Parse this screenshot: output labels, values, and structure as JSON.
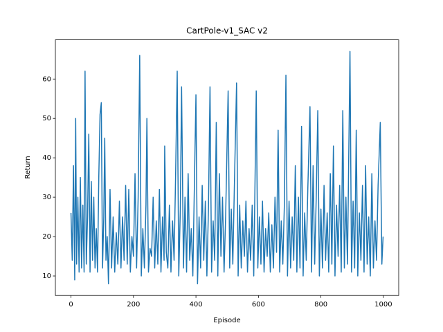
{
  "chart_data": {
    "type": "line",
    "title": "CartPole-v1_SAC v2",
    "x_label": "Episode",
    "y_label": "Return",
    "x": [
      0,
      4,
      8,
      12,
      15,
      18,
      22,
      26,
      30,
      34,
      38,
      42,
      45,
      49,
      53,
      57,
      61,
      65,
      69,
      73,
      77,
      81,
      85,
      89,
      93,
      97,
      101,
      105,
      108,
      112,
      116,
      120,
      125,
      130,
      135,
      140,
      145,
      150,
      155,
      160,
      165,
      170,
      175,
      180,
      185,
      190,
      195,
      200,
      205,
      210,
      215,
      220,
      225,
      230,
      235,
      240,
      243,
      248,
      253,
      258,
      263,
      268,
      273,
      278,
      283,
      288,
      293,
      298,
      300,
      305,
      310,
      315,
      320,
      325,
      330,
      335,
      340,
      345,
      350,
      354,
      360,
      365,
      370,
      375,
      380,
      385,
      390,
      395,
      400,
      405,
      410,
      415,
      420,
      425,
      430,
      435,
      440,
      445,
      450,
      455,
      460,
      465,
      470,
      475,
      480,
      485,
      490,
      495,
      503,
      508,
      513,
      518,
      523,
      530,
      535,
      540,
      545,
      550,
      555,
      560,
      565,
      570,
      575,
      580,
      585,
      593,
      598,
      603,
      608,
      613,
      618,
      623,
      628,
      633,
      638,
      643,
      648,
      653,
      658,
      663,
      668,
      673,
      678,
      683,
      688,
      693,
      698,
      703,
      708,
      713,
      718,
      723,
      728,
      733,
      738,
      743,
      748,
      753,
      758,
      765,
      770,
      775,
      780,
      785,
      790,
      795,
      800,
      805,
      810,
      815,
      820,
      825,
      830,
      835,
      840,
      845,
      850,
      855,
      860,
      865,
      870,
      875,
      880,
      885,
      893,
      898,
      903,
      908,
      913,
      918,
      923,
      928,
      933,
      938,
      943,
      948,
      953,
      958,
      963,
      968,
      973,
      978,
      983,
      990,
      995,
      999
    ],
    "series": [
      {
        "name": "Return",
        "color": "#1f77b4",
        "values": [
          26,
          14,
          38,
          9,
          50,
          13,
          30,
          11,
          35,
          12,
          28,
          11,
          62,
          13,
          25,
          46,
          11,
          34,
          14,
          30,
          12,
          22,
          11,
          35,
          51,
          54,
          12,
          25,
          45,
          14,
          20,
          8,
          32,
          12,
          25,
          11,
          21,
          13,
          29,
          12,
          25,
          14,
          33,
          13,
          32,
          11,
          20,
          15,
          36,
          12,
          30,
          66,
          10,
          22,
          12,
          28,
          50,
          11,
          17,
          15,
          30,
          12,
          24,
          13,
          32,
          11,
          25,
          14,
          43,
          16,
          12,
          28,
          11,
          24,
          14,
          36,
          62,
          10,
          27,
          58,
          12,
          30,
          11,
          36,
          14,
          22,
          10,
          33,
          56,
          8,
          25,
          12,
          33,
          14,
          29,
          10,
          27,
          58,
          11,
          24,
          14,
          49,
          10,
          36,
          15,
          30,
          11,
          25,
          57,
          12,
          27,
          13,
          33,
          59,
          10,
          28,
          12,
          24,
          15,
          29,
          11,
          22,
          14,
          28,
          10,
          57,
          12,
          25,
          13,
          29,
          11,
          22,
          15,
          26,
          11,
          23,
          12,
          30,
          16,
          47,
          11,
          24,
          13,
          28,
          61,
          10,
          29,
          12,
          25,
          14,
          38,
          11,
          30,
          12,
          48,
          10,
          26,
          14,
          32,
          53,
          11,
          38,
          13,
          30,
          52,
          10,
          27,
          12,
          33,
          14,
          26,
          11,
          36,
          13,
          43,
          10,
          28,
          15,
          33,
          11,
          52,
          12,
          30,
          13,
          67,
          11,
          29,
          12,
          47,
          10,
          26,
          14,
          33,
          11,
          38,
          13,
          25,
          10,
          36,
          12,
          24,
          14,
          33,
          49,
          13,
          20
        ]
      }
    ],
    "xlim": [
      -49.95,
      1048.95
    ],
    "ylim": [
      5.05,
      69.95
    ],
    "xticks": [
      0,
      200,
      400,
      600,
      800,
      1000
    ],
    "yticks": [
      10,
      20,
      30,
      40,
      50,
      60
    ],
    "grid": false
  }
}
